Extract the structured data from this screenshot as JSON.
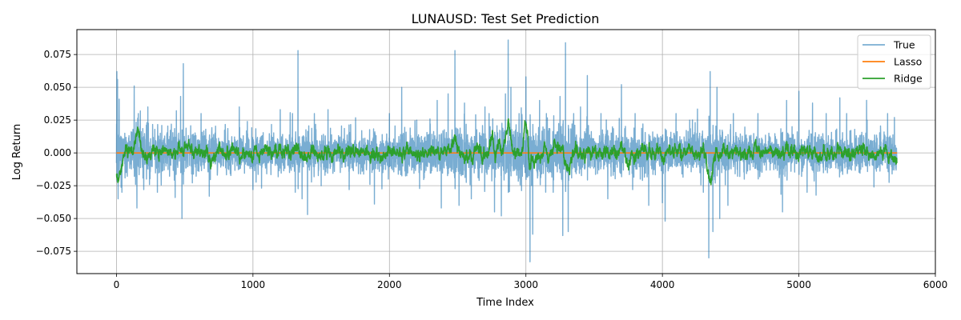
{
  "chart_data": {
    "type": "line",
    "title": "LUNAUSD: Test Set Prediction",
    "xlabel": "Time Index",
    "ylabel": "Log Return",
    "xlim": [
      -290,
      6000
    ],
    "ylim": [
      -0.092,
      0.094
    ],
    "x_ticks": [
      0,
      1000,
      2000,
      3000,
      4000,
      5000,
      6000
    ],
    "x_tick_labels": [
      "0",
      "1000",
      "2000",
      "3000",
      "4000",
      "5000",
      "6000"
    ],
    "y_ticks": [
      -0.075,
      -0.05,
      -0.025,
      0.0,
      0.025,
      0.05,
      0.075
    ],
    "y_tick_labels": [
      "−0.075",
      "−0.050",
      "−0.025",
      "0.000",
      "0.025",
      "0.050",
      "0.075"
    ],
    "grid": true,
    "legend_position": "top-right",
    "n_points": 5720,
    "series": [
      {
        "name": "True",
        "color": "#1f77b4",
        "opacity": 0.6,
        "kind": "noisy",
        "amplitude_profile": [
          [
            0,
            0.012
          ],
          [
            200,
            0.012
          ],
          [
            500,
            0.01
          ],
          [
            1000,
            0.01
          ],
          [
            1400,
            0.009
          ],
          [
            2000,
            0.01
          ],
          [
            2400,
            0.011
          ],
          [
            2700,
            0.013
          ],
          [
            3000,
            0.014
          ],
          [
            3300,
            0.012
          ],
          [
            3800,
            0.011
          ],
          [
            4000,
            0.01
          ],
          [
            4400,
            0.01
          ],
          [
            5000,
            0.009
          ],
          [
            5500,
            0.009
          ],
          [
            5720,
            0.009
          ]
        ],
        "spikes": [
          [
            3,
            0.062
          ],
          [
            8,
            0.056
          ],
          [
            12,
            -0.035
          ],
          [
            20,
            0.041
          ],
          [
            40,
            -0.03
          ],
          [
            130,
            0.051
          ],
          [
            150,
            -0.042
          ],
          [
            160,
            0.03
          ],
          [
            175,
            0.032
          ],
          [
            200,
            -0.028
          ],
          [
            230,
            0.035
          ],
          [
            300,
            -0.03
          ],
          [
            430,
            -0.034
          ],
          [
            470,
            0.043
          ],
          [
            480,
            -0.05
          ],
          [
            490,
            0.068
          ],
          [
            620,
            0.03
          ],
          [
            680,
            -0.033
          ],
          [
            900,
            0.035
          ],
          [
            1000,
            -0.028
          ],
          [
            1200,
            0.033
          ],
          [
            1290,
            0.03
          ],
          [
            1310,
            -0.03
          ],
          [
            1330,
            0.078
          ],
          [
            1360,
            -0.035
          ],
          [
            1400,
            -0.047
          ],
          [
            1450,
            0.03
          ],
          [
            1500,
            -0.025
          ],
          [
            1550,
            0.033
          ],
          [
            1890,
            -0.039
          ],
          [
            2000,
            0.03
          ],
          [
            2090,
            0.05
          ],
          [
            2200,
            0.025
          ],
          [
            2350,
            0.04
          ],
          [
            2380,
            -0.042
          ],
          [
            2430,
            0.045
          ],
          [
            2480,
            0.078
          ],
          [
            2510,
            -0.04
          ],
          [
            2550,
            0.038
          ],
          [
            2600,
            -0.035
          ],
          [
            2700,
            0.035
          ],
          [
            2730,
            0.03
          ],
          [
            2770,
            -0.045
          ],
          [
            2820,
            -0.048
          ],
          [
            2850,
            0.045
          ],
          [
            2870,
            0.086
          ],
          [
            2890,
            0.05
          ],
          [
            2950,
            0.03
          ],
          [
            3000,
            0.058
          ],
          [
            3030,
            -0.083
          ],
          [
            3050,
            -0.062
          ],
          [
            3100,
            0.04
          ],
          [
            3150,
            0.03
          ],
          [
            3200,
            -0.03
          ],
          [
            3250,
            0.043
          ],
          [
            3270,
            -0.063
          ],
          [
            3290,
            0.084
          ],
          [
            3310,
            -0.06
          ],
          [
            3350,
            0.03
          ],
          [
            3400,
            0.035
          ],
          [
            3450,
            0.059
          ],
          [
            3550,
            0.03
          ],
          [
            3600,
            -0.035
          ],
          [
            3700,
            0.052
          ],
          [
            3800,
            0.03
          ],
          [
            3900,
            -0.04
          ],
          [
            4000,
            -0.038
          ],
          [
            4020,
            -0.052
          ],
          [
            4100,
            0.03
          ],
          [
            4200,
            0.025
          ],
          [
            4300,
            -0.03
          ],
          [
            4340,
            -0.08
          ],
          [
            4350,
            0.062
          ],
          [
            4370,
            -0.06
          ],
          [
            4400,
            0.05
          ],
          [
            4420,
            -0.05
          ],
          [
            4480,
            -0.04
          ],
          [
            4520,
            0.03
          ],
          [
            4600,
            -0.02
          ],
          [
            4700,
            0.03
          ],
          [
            4880,
            -0.045
          ],
          [
            4910,
            0.04
          ],
          [
            4950,
            0.02
          ],
          [
            5000,
            0.047
          ],
          [
            5060,
            -0.03
          ],
          [
            5100,
            0.038
          ],
          [
            5200,
            0.03
          ],
          [
            5300,
            0.042
          ],
          [
            5350,
            0.03
          ],
          [
            5500,
            0.025
          ],
          [
            5550,
            -0.026
          ],
          [
            5650,
            0.03
          ],
          [
            5700,
            0.027
          ]
        ]
      },
      {
        "name": "Lasso",
        "color": "#ff7f0e",
        "opacity": 1.0,
        "kind": "constant",
        "value": 0.0
      },
      {
        "name": "Ridge",
        "color": "#2ca02c",
        "opacity": 1.0,
        "kind": "smooth",
        "amplitude": 0.0028,
        "features": [
          [
            5,
            -0.014
          ],
          [
            20,
            -0.01
          ],
          [
            40,
            -0.006
          ],
          [
            80,
            0.002
          ],
          [
            130,
            0.005
          ],
          [
            150,
            0.012
          ],
          [
            170,
            0.008
          ],
          [
            250,
            -0.003
          ],
          [
            300,
            0.003
          ],
          [
            500,
            0.004
          ],
          [
            700,
            -0.004
          ],
          [
            1200,
            0.002
          ],
          [
            1330,
            0.004
          ],
          [
            1500,
            -0.002
          ],
          [
            2000,
            0.002
          ],
          [
            2250,
            -0.003
          ],
          [
            2450,
            0.005
          ],
          [
            2480,
            0.011
          ],
          [
            2550,
            -0.004
          ],
          [
            2650,
            0.003
          ],
          [
            2750,
            0.01
          ],
          [
            2800,
            0.008
          ],
          [
            2840,
            0.006
          ],
          [
            2870,
            0.022
          ],
          [
            2880,
            0.005
          ],
          [
            3000,
            0.019
          ],
          [
            3030,
            -0.008
          ],
          [
            3070,
            -0.006
          ],
          [
            3100,
            -0.004
          ],
          [
            3200,
            0.002
          ],
          [
            3300,
            -0.005
          ],
          [
            3320,
            -0.008
          ],
          [
            3500,
            0.003
          ],
          [
            3700,
            0.009
          ],
          [
            3750,
            -0.005
          ],
          [
            3800,
            -0.005
          ],
          [
            3850,
            0.005
          ],
          [
            4000,
            -0.003
          ],
          [
            4200,
            0.003
          ],
          [
            4340,
            -0.01
          ],
          [
            4360,
            -0.016
          ],
          [
            4400,
            -0.003
          ],
          [
            4500,
            0.002
          ],
          [
            4600,
            0.003
          ],
          [
            4800,
            0.003
          ],
          [
            5000,
            -0.002
          ],
          [
            5150,
            -0.004
          ],
          [
            5300,
            0.003
          ],
          [
            5500,
            0.002
          ],
          [
            5700,
            -0.006
          ],
          [
            5715,
            -0.002
          ]
        ]
      }
    ]
  }
}
